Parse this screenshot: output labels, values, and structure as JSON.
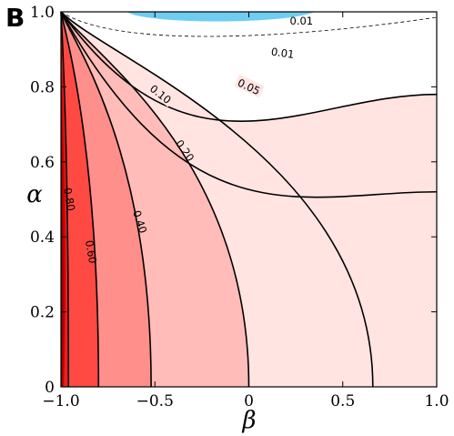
{
  "panel_label": "B",
  "chart_data": {
    "type": "contour",
    "xlabel": "β",
    "ylabel": "α",
    "xlim": [
      -1.0,
      1.0
    ],
    "ylim": [
      0,
      1.0
    ],
    "x_ticks": [
      -1.0,
      -0.5,
      0,
      0.5,
      1.0
    ],
    "x_tick_labels": [
      "−1.0",
      "−0.5",
      "0",
      "0.5",
      "1.0"
    ],
    "y_ticks": [
      0,
      0.2,
      0.4,
      0.6,
      0.8,
      1.0
    ],
    "y_tick_labels": [
      "0",
      "0.2",
      "0.4",
      "0.6",
      "0.8",
      "1.0"
    ],
    "grid": false,
    "levels": [
      0.01,
      0.05,
      0.1,
      0.2,
      0.4,
      0.6,
      0.8
    ],
    "contours": [
      {
        "level": "0.80",
        "label": "0.80",
        "x0": -0.96,
        "shape": 0.97,
        "label_y": 0.48
      },
      {
        "level": "0.60",
        "label": "0.60",
        "x0": -0.8,
        "shape": 0.9,
        "label_y": 0.36
      },
      {
        "level": "0.40",
        "label": "0.40",
        "x0": -0.52,
        "shape": 0.82,
        "label_y": 0.44
      },
      {
        "level": "0.20",
        "label": "0.20",
        "x0": 0.0,
        "shape": 0.72,
        "label_y": 0.62
      },
      {
        "level": "0.05",
        "label": "0.05",
        "x0": 0.66,
        "shape": 0.62,
        "label_y": 0.77
      },
      {
        "level": "0.10",
        "label": "0.10",
        "x0": 1.0,
        "x_end_y": 0.52,
        "label_y": 0.77
      },
      {
        "level": "0.01",
        "label": "0.01",
        "x0": 1.0,
        "x_end_y": 0.78,
        "label_y": 0.89
      }
    ],
    "negative_region": {
      "color": "#6fcdf1",
      "label": "0.01",
      "dashed_label_y": 0.97
    },
    "fill_colors": [
      "#8b0000",
      "#cf0000",
      "#e8221e",
      "#ff4a44",
      "#ff8f8a",
      "#ffbcb8",
      "#ffe4e2",
      "#ffffff"
    ],
    "line_color": "#000000"
  }
}
